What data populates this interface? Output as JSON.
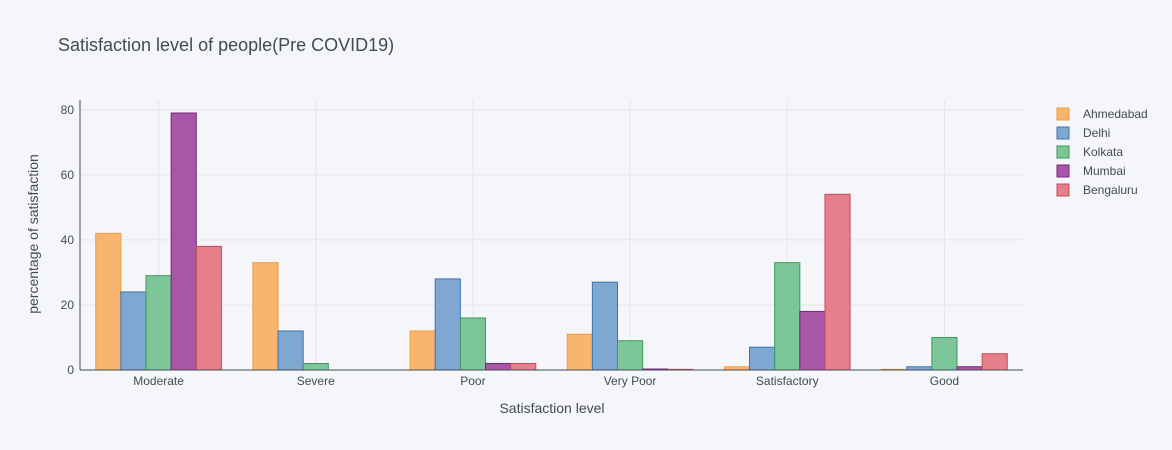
{
  "chart_data": {
    "type": "bar",
    "title": "Satisfaction level of people(Pre COVID19)",
    "xlabel": "Satisfaction level",
    "ylabel": "percentage of satisfaction",
    "ylim": [
      0,
      83
    ],
    "yticks": [
      0,
      20,
      40,
      60,
      80
    ],
    "grid": true,
    "legend_position": "top-right",
    "categories": [
      "Moderate",
      "Severe",
      "Poor",
      "Very Poor",
      "Satisfactory",
      "Good"
    ],
    "series": [
      {
        "name": "Ahmedabad",
        "color": "#f8b56f",
        "stroke": "#f29d3d",
        "values": [
          42,
          33,
          12,
          11,
          1,
          0.2
        ]
      },
      {
        "name": "Delhi",
        "color": "#7ea8d2",
        "stroke": "#3b75b0",
        "values": [
          24,
          12,
          28,
          27,
          7,
          1
        ]
      },
      {
        "name": "Kolkata",
        "color": "#7cc69a",
        "stroke": "#3a9a5e",
        "values": [
          29,
          2,
          16,
          9,
          33,
          10
        ]
      },
      {
        "name": "Mumbai",
        "color": "#a856a8",
        "stroke": "#7a237a",
        "values": [
          79,
          0,
          2,
          0.3,
          18,
          1
        ]
      },
      {
        "name": "Bengaluru",
        "color": "#e57f8c",
        "stroke": "#c94a5a",
        "values": [
          38,
          0,
          2,
          0.2,
          54,
          5
        ]
      }
    ]
  }
}
